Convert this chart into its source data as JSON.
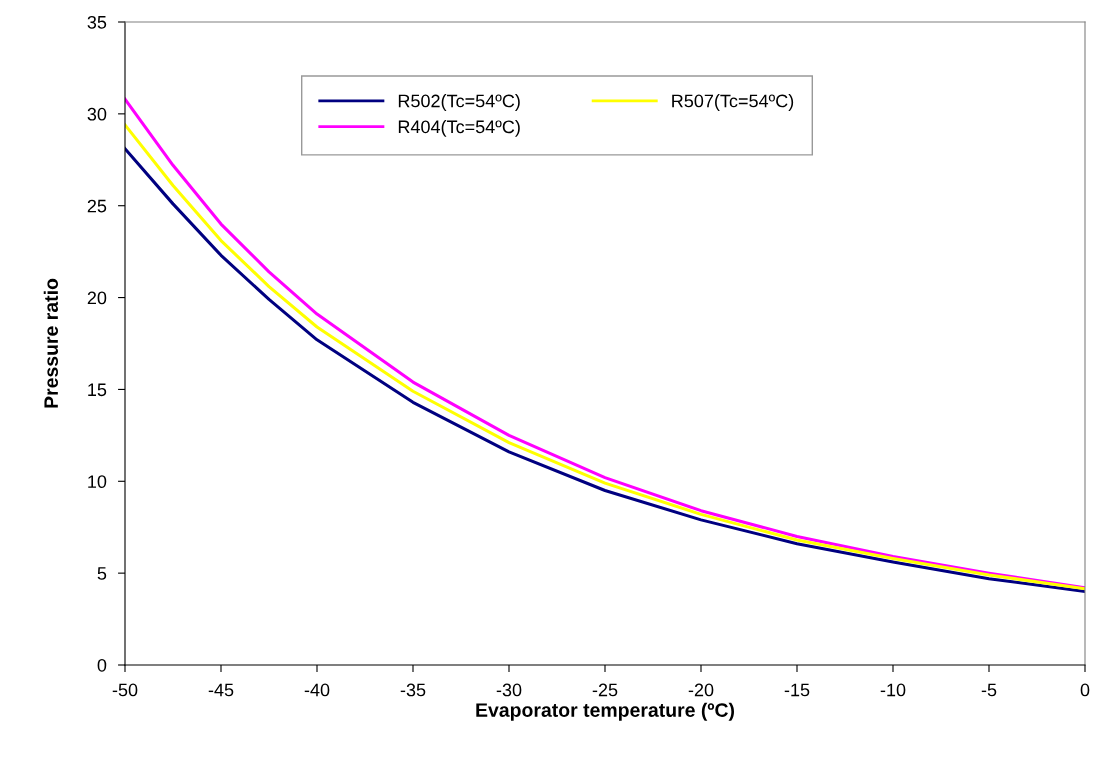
{
  "chart_data": {
    "type": "line",
    "xlabel": "Evaporator temperature (ºC)",
    "ylabel": "Pressure ratio",
    "x": [
      -50,
      -47.5,
      -45,
      -42.5,
      -40,
      -35,
      -30,
      -25,
      -20,
      -15,
      -10,
      -5,
      0
    ],
    "series": [
      {
        "name": "R502(Tc=54ºC)",
        "color": "#000080",
        "values": [
          28.1,
          25.1,
          22.3,
          19.9,
          17.7,
          14.3,
          11.6,
          9.5,
          7.9,
          6.6,
          5.6,
          4.7,
          4.0
        ]
      },
      {
        "name": "R404(Tc=54ºC)",
        "color": "#ff00ff",
        "values": [
          30.8,
          27.2,
          24.0,
          21.4,
          19.1,
          15.4,
          12.5,
          10.2,
          8.4,
          7.0,
          5.9,
          5.0,
          4.2
        ]
      },
      {
        "name": "R507(Tc=54ºC)",
        "color": "#ffff00",
        "values": [
          29.4,
          26.1,
          23.1,
          20.6,
          18.4,
          14.9,
          12.1,
          9.9,
          8.2,
          6.8,
          5.8,
          4.9,
          4.15
        ]
      }
    ],
    "xlim": [
      -50,
      0
    ],
    "xticks": [
      -50,
      -45,
      -40,
      -35,
      -30,
      -25,
      -20,
      -15,
      -10,
      -5,
      0
    ],
    "ylim": [
      0,
      35
    ],
    "yticks": [
      0,
      5,
      10,
      15,
      20,
      25,
      30,
      35
    ],
    "grid": false,
    "legend": "top",
    "marker": "none",
    "line_style": "solid"
  }
}
